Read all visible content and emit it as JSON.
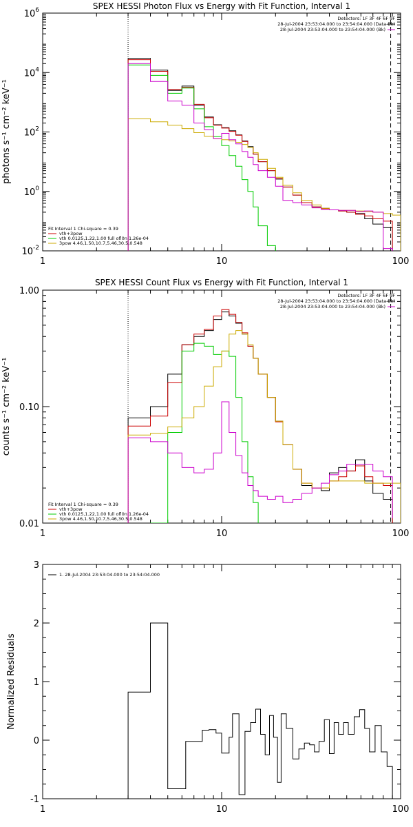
{
  "chart_data": [
    {
      "type": "line",
      "title": "SPEX HESSI Photon Flux vs Energy with Fit Function, Interval 1",
      "ylabel": "photons s⁻¹ cm⁻² keV⁻¹",
      "xlabel": "",
      "xscale": "log",
      "yscale": "log",
      "xlim": [
        1,
        100
      ],
      "ylim": [
        0.01,
        1000000
      ],
      "xticks": [
        "1",
        "10",
        "100"
      ],
      "yticks": [
        {
          "base": "10",
          "exp": "-2",
          "v": 0.01
        },
        {
          "base": "10",
          "exp": "0",
          "v": 1
        },
        {
          "base": "10",
          "exp": "2",
          "v": 100
        },
        {
          "base": "10",
          "exp": "4",
          "v": 10000
        },
        {
          "base": "10",
          "exp": "6",
          "v": 1000000
        }
      ],
      "vlines": [
        {
          "x": 3,
          "style": "dotted"
        },
        {
          "x": 88,
          "style": "dashed"
        }
      ],
      "header": [
        "Detectors: 1F 3F 4F 6F 9F",
        "28-Jul-2004 23:53:04.000 to 23:54:04.000 (Data-Bk)",
        "28-Jul-2004 23:53:04.000 to 23:54:04.000 (Bk)"
      ],
      "legend": [
        "Fit Interval 1   Chi-square = 0.39",
        "vth+3pow",
        "vth 0.0125,1.22,1.00  full ofl0n 1.26e-04",
        "3pow 4.46,1.50,10.7,5.46,30.5,0.548"
      ],
      "legend_colors": [
        "#cc0000",
        "#00cc00",
        "#ccaa00"
      ],
      "series": [
        {
          "name": "Data-Bk",
          "color": "#000000",
          "edges": [
            3,
            4,
            5,
            6,
            7,
            8,
            9,
            10,
            11,
            12,
            13,
            14,
            15,
            16,
            18,
            20,
            22,
            25,
            28,
            32,
            36,
            40,
            45,
            50,
            56,
            63,
            70,
            80,
            90
          ],
          "values": [
            30000,
            12000,
            2500,
            3500,
            800,
            320,
            175,
            140,
            110,
            80,
            50,
            32,
            18,
            10,
            5,
            2.6,
            1.4,
            0.75,
            0.42,
            0.3,
            0.27,
            0.24,
            0.22,
            0.2,
            0.18,
            0.12,
            0.08,
            0.06
          ]
        },
        {
          "name": "vth+3pow",
          "color": "#cc0000",
          "edges": [
            3,
            4,
            5,
            6,
            7,
            8,
            9,
            10,
            11,
            12,
            13,
            14,
            15,
            16,
            18,
            20,
            22,
            25,
            28,
            32,
            36,
            40,
            45,
            50,
            56,
            63,
            70,
            80,
            90
          ],
          "values": [
            27000,
            11000,
            2700,
            3200,
            850,
            300,
            170,
            135,
            105,
            78,
            48,
            30,
            18,
            10,
            5,
            2.7,
            1.4,
            0.75,
            0.42,
            0.3,
            0.26,
            0.24,
            0.22,
            0.2,
            0.17,
            0.15,
            0.12,
            0.1
          ]
        },
        {
          "name": "vth",
          "color": "#00cc00",
          "edges": [
            3,
            4,
            5,
            6,
            7,
            8,
            9,
            10,
            11,
            12,
            13,
            14,
            15,
            16,
            18,
            20,
            21
          ],
          "values": [
            18000,
            8000,
            2000,
            3000,
            600,
            150,
            70,
            35,
            16,
            7,
            2.5,
            1,
            0.3,
            0.07,
            0.015,
            0.004
          ]
        },
        {
          "name": "3pow",
          "color": "#ccaa00",
          "edges": [
            3,
            4,
            5,
            6,
            7,
            8,
            9,
            10,
            11,
            12,
            13,
            14,
            15,
            16,
            18,
            20,
            22,
            25,
            28,
            32,
            36,
            40,
            45,
            50,
            56,
            63,
            70,
            80,
            90,
            100
          ],
          "values": [
            280,
            220,
            170,
            130,
            95,
            72,
            60,
            55,
            50,
            45,
            38,
            30,
            20,
            12,
            6,
            3,
            1.6,
            0.9,
            0.5,
            0.35,
            0.27,
            0.24,
            0.23,
            0.23,
            0.22,
            0.21,
            0.2,
            0.18,
            0.16
          ]
        },
        {
          "name": "Bk",
          "color": "#cc00cc",
          "edges": [
            3,
            4,
            5,
            6,
            7,
            8,
            9,
            10,
            11,
            12,
            13,
            14,
            15,
            16,
            18,
            20,
            22,
            25,
            28,
            32,
            36,
            40,
            45,
            50,
            56,
            63,
            70,
            80,
            90
          ],
          "values": [
            20000,
            5000,
            1100,
            800,
            200,
            120,
            60,
            90,
            55,
            40,
            22,
            14,
            8,
            5,
            3,
            1.5,
            0.5,
            0.42,
            0.35,
            0.28,
            0.25,
            0.24,
            0.23,
            0.23,
            0.21,
            0.22,
            0.2,
            0.012
          ]
        }
      ]
    },
    {
      "type": "line",
      "title": "SPEX HESSI Count Flux vs Energy with Fit Function, Interval 1",
      "ylabel": "counts s⁻¹ cm⁻² keV⁻¹",
      "xlabel": "",
      "xscale": "log",
      "yscale": "log",
      "xlim": [
        1,
        100
      ],
      "ylim": [
        0.01,
        1.0
      ],
      "xticks": [
        "1",
        "10",
        "100"
      ],
      "yticks": [
        {
          "label": "0.01",
          "v": 0.01
        },
        {
          "label": "0.10",
          "v": 0.1
        },
        {
          "label": "1.00",
          "v": 1.0
        }
      ],
      "vlines": [
        {
          "x": 3,
          "style": "dotted"
        },
        {
          "x": 88,
          "style": "dashed"
        }
      ],
      "header": [
        "Detectors: 1F 3F 4F 6F 9F",
        "28-Jul-2004 23:53:04.000 to 23:54:04.000 (Data-Bk)",
        "28-Jul-2004 23:53:04.000 to 23:54:04.000 (Bk)"
      ],
      "legend": [
        "Fit Interval 1   Chi-square = 0.39",
        "vth+3pow",
        "vth 0.0125,1.22,1.00  full ofl0n 1.26e-04",
        "3pow 4.46,1.50,10.7,5.46,30.5,0.548"
      ],
      "legend_colors": [
        "#cc0000",
        "#00cc00",
        "#ccaa00"
      ],
      "series": [
        {
          "name": "Data-Bk",
          "color": "#000000",
          "edges": [
            3,
            4,
            5,
            6,
            7,
            8,
            9,
            10,
            11,
            12,
            13,
            14,
            15,
            16,
            18,
            20,
            22,
            25,
            28,
            32,
            36,
            40,
            45,
            50,
            56,
            63,
            70,
            80,
            90
          ],
          "values": [
            0.08,
            0.1,
            0.19,
            0.34,
            0.4,
            0.45,
            0.56,
            0.65,
            0.6,
            0.52,
            0.42,
            0.33,
            0.26,
            0.19,
            0.12,
            0.075,
            0.047,
            0.029,
            0.021,
            0.02,
            0.019,
            0.027,
            0.03,
            0.028,
            0.035,
            0.023,
            0.018,
            0.016
          ]
        },
        {
          "name": "vth+3pow",
          "color": "#cc0000",
          "edges": [
            3,
            4,
            5,
            6,
            7,
            8,
            9,
            10,
            11,
            12,
            13,
            14,
            15,
            16,
            18,
            20,
            22,
            25,
            28,
            32,
            36,
            40,
            45,
            50,
            56,
            63,
            70,
            80,
            90
          ],
          "values": [
            0.068,
            0.083,
            0.16,
            0.34,
            0.42,
            0.46,
            0.6,
            0.68,
            0.62,
            0.53,
            0.43,
            0.33,
            0.26,
            0.19,
            0.12,
            0.074,
            0.047,
            0.029,
            0.022,
            0.02,
            0.02,
            0.023,
            0.025,
            0.028,
            0.031,
            0.025,
            0.022,
            0.021
          ]
        },
        {
          "name": "vth",
          "color": "#00cc00",
          "edges": [
            3,
            4,
            5,
            6,
            7,
            8,
            9,
            10,
            11,
            12,
            13,
            14,
            15,
            16,
            17
          ],
          "values": [
            0.001,
            0.01,
            0.06,
            0.3,
            0.35,
            0.33,
            0.28,
            0.3,
            0.27,
            0.12,
            0.05,
            0.025,
            0.015,
            0.008
          ]
        },
        {
          "name": "3pow",
          "color": "#ccaa00",
          "edges": [
            3,
            4,
            5,
            6,
            7,
            8,
            9,
            10,
            11,
            12,
            13,
            14,
            15,
            16,
            18,
            20,
            22,
            25,
            28,
            32,
            36,
            40,
            45,
            50,
            56,
            63,
            70,
            80,
            90,
            100
          ],
          "values": [
            0.057,
            0.059,
            0.067,
            0.08,
            0.1,
            0.15,
            0.22,
            0.3,
            0.42,
            0.45,
            0.42,
            0.34,
            0.26,
            0.19,
            0.12,
            0.075,
            0.047,
            0.029,
            0.022,
            0.02,
            0.02,
            0.023,
            0.023,
            0.023,
            0.023,
            0.022,
            0.022,
            0.022,
            0.022
          ]
        },
        {
          "name": "Bk",
          "color": "#cc00cc",
          "edges": [
            3,
            4,
            5,
            6,
            7,
            8,
            9,
            10,
            11,
            12,
            13,
            14,
            15,
            16,
            18,
            20,
            22,
            25,
            28,
            32,
            36,
            40,
            45,
            50,
            56,
            63,
            70,
            80,
            90
          ],
          "values": [
            0.054,
            0.05,
            0.04,
            0.03,
            0.027,
            0.029,
            0.04,
            0.11,
            0.06,
            0.038,
            0.027,
            0.021,
            0.019,
            0.017,
            0.016,
            0.017,
            0.015,
            0.016,
            0.018,
            0.02,
            0.022,
            0.026,
            0.028,
            0.032,
            0.032,
            0.032,
            0.028,
            0.025,
            0.011
          ]
        }
      ]
    },
    {
      "type": "line",
      "title": "",
      "ylabel": "Normalized Residuals",
      "xlabel": "",
      "xscale": "log",
      "yscale": "linear",
      "xlim": [
        1,
        100
      ],
      "ylim": [
        -1,
        3
      ],
      "xticks": [
        "1",
        "10",
        "100"
      ],
      "yticks": [
        {
          "label": "-1",
          "v": -1
        },
        {
          "label": "0",
          "v": 0
        },
        {
          "label": "1",
          "v": 1
        },
        {
          "label": "2",
          "v": 2
        },
        {
          "label": "3",
          "v": 3
        }
      ],
      "legend": [
        "1. 28-Jul-2004 23:53:04.000 to 23:54:04.000"
      ],
      "legend_colors": [
        "#000000"
      ],
      "series": [
        {
          "name": "1. 28-Jul-2004 23:53:04.000 to 23:54:04.000",
          "color": "#000000",
          "edges": [
            3,
            3.5,
            4,
            4.5,
            5,
            5.6,
            6.3,
            7,
            7.8,
            8.5,
            9.3,
            10,
            11,
            11.5,
            12.5,
            13.5,
            14.5,
            15.5,
            16.5,
            17.5,
            18.5,
            19.5,
            20.5,
            21.5,
            23,
            25,
            27,
            29,
            31,
            33,
            35,
            37.5,
            40,
            42.5,
            45,
            48,
            51,
            55,
            59,
            63,
            67,
            72,
            78,
            84,
            90
          ],
          "values": [
            0.82,
            0.82,
            2.0,
            2.0,
            -0.83,
            -0.83,
            -0.02,
            -0.02,
            0.17,
            0.18,
            0.12,
            -0.22,
            0.05,
            0.45,
            -0.93,
            0.15,
            0.3,
            0.53,
            0.1,
            -0.25,
            0.42,
            0.05,
            -0.72,
            0.45,
            0.2,
            -0.32,
            -0.15,
            -0.05,
            -0.08,
            -0.2,
            -0.02,
            0.35,
            -0.23,
            0.3,
            0.1,
            0.3,
            0.1,
            0.4,
            0.52,
            0.2,
            -0.2,
            0.25,
            -0.2,
            -0.45
          ]
        }
      ]
    }
  ]
}
